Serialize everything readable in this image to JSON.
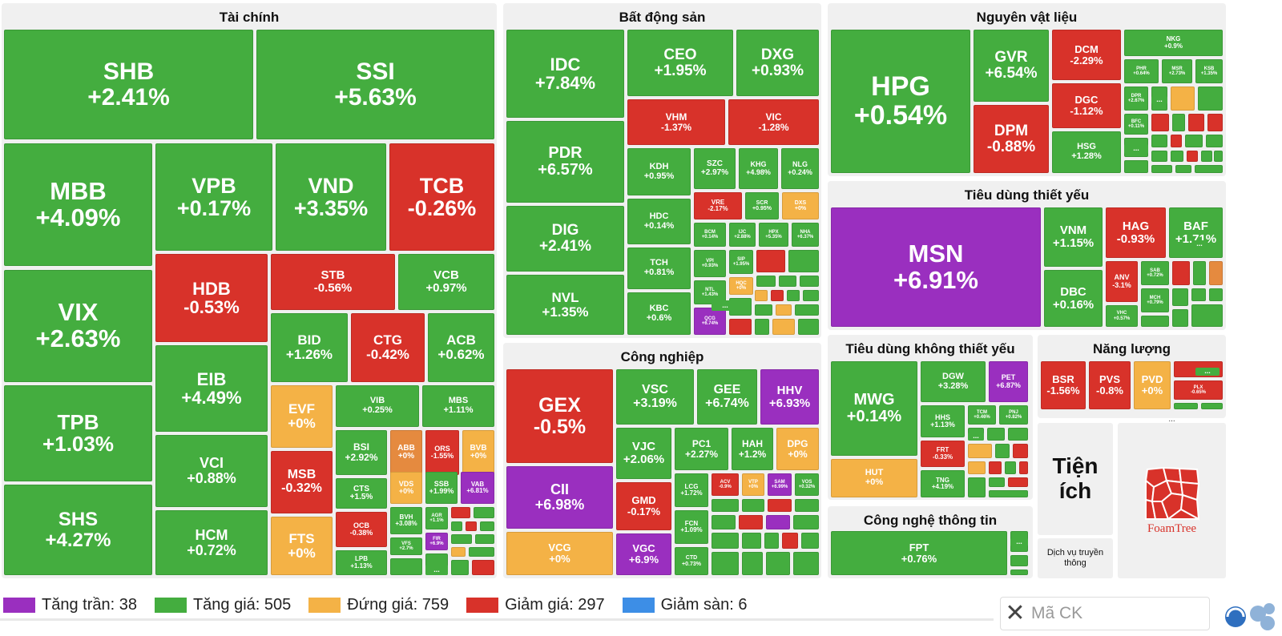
{
  "sectors": [
    {
      "name": "Tài chính"
    },
    {
      "name": "Bất động sản"
    },
    {
      "name": "Nguyên vật liệu"
    },
    {
      "name": "Tiêu dùng thiết yếu"
    },
    {
      "name": "Công nghiệp"
    },
    {
      "name": "Tiêu dùng không thiết yếu"
    },
    {
      "name": "Năng lượng"
    },
    {
      "name": "Công nghệ thông tin"
    }
  ],
  "tiles": [
    {
      "s": "SHB",
      "c": "+2.41%",
      "k": "up"
    },
    {
      "s": "SSI",
      "c": "+5.63%",
      "k": "up"
    },
    {
      "s": "MBB",
      "c": "+4.09%",
      "k": "up"
    },
    {
      "s": "VPB",
      "c": "+0.17%",
      "k": "up"
    },
    {
      "s": "VND",
      "c": "+3.35%",
      "k": "up"
    },
    {
      "s": "TCB",
      "c": "-0.26%",
      "k": "down"
    },
    {
      "s": "VIX",
      "c": "+2.63%",
      "k": "up"
    },
    {
      "s": "HDB",
      "c": "-0.53%",
      "k": "down"
    },
    {
      "s": "STB",
      "c": "-0.56%",
      "k": "down"
    },
    {
      "s": "VCB",
      "c": "+0.97%",
      "k": "up"
    },
    {
      "s": "EIB",
      "c": "+4.49%",
      "k": "up"
    },
    {
      "s": "BID",
      "c": "+1.26%",
      "k": "up"
    },
    {
      "s": "CTG",
      "c": "-0.42%",
      "k": "down"
    },
    {
      "s": "ACB",
      "c": "+0.62%",
      "k": "up"
    },
    {
      "s": "TPB",
      "c": "+1.03%",
      "k": "up"
    },
    {
      "s": "VCI",
      "c": "+0.88%",
      "k": "up"
    },
    {
      "s": "EVF",
      "c": "+0%",
      "k": "ref"
    },
    {
      "s": "VIB",
      "c": "+0.25%",
      "k": "up"
    },
    {
      "s": "MBS",
      "c": "+1.11%",
      "k": "up"
    },
    {
      "s": "BSI",
      "c": "+2.92%",
      "k": "up"
    },
    {
      "s": "ABB",
      "c": "+0%",
      "k": "mix"
    },
    {
      "s": "ORS",
      "c": "-1.55%",
      "k": "down"
    },
    {
      "s": "BVB",
      "c": "+0%",
      "k": "ref"
    },
    {
      "s": "MSB",
      "c": "-0.32%",
      "k": "down"
    },
    {
      "s": "CTS",
      "c": "+1.5%",
      "k": "up"
    },
    {
      "s": "VDS",
      "c": "+0%",
      "k": "ref"
    },
    {
      "s": "SSB",
      "c": "+1.99%",
      "k": "up"
    },
    {
      "s": "VAB",
      "c": "+6.81%",
      "k": "ceil"
    },
    {
      "s": "SHS",
      "c": "+4.27%",
      "k": "up"
    },
    {
      "s": "HCM",
      "c": "+0.72%",
      "k": "up"
    },
    {
      "s": "FTS",
      "c": "+0%",
      "k": "ref"
    },
    {
      "s": "OCB",
      "c": "-0.38%",
      "k": "down"
    },
    {
      "s": "BVH",
      "c": "+3.08%",
      "k": "up"
    },
    {
      "s": "AGR",
      "c": "+1.1%",
      "k": "up"
    },
    {
      "s": "LPB",
      "c": "+1.13%",
      "k": "up"
    },
    {
      "s": "VFS",
      "c": "+2.7%",
      "k": "up"
    },
    {
      "s": "FIR",
      "c": "+6.9%",
      "k": "ceil"
    },
    {
      "s": "IDC",
      "c": "+7.84%",
      "k": "up"
    },
    {
      "s": "CEO",
      "c": "+1.95%",
      "k": "up"
    },
    {
      "s": "DXG",
      "c": "+0.93%",
      "k": "up"
    },
    {
      "s": "VHM",
      "c": "-1.37%",
      "k": "down"
    },
    {
      "s": "VIC",
      "c": "-1.28%",
      "k": "down"
    },
    {
      "s": "PDR",
      "c": "+6.57%",
      "k": "up"
    },
    {
      "s": "KDH",
      "c": "+0.95%",
      "k": "up"
    },
    {
      "s": "SZC",
      "c": "+2.97%",
      "k": "up"
    },
    {
      "s": "KHG",
      "c": "+4.98%",
      "k": "up"
    },
    {
      "s": "NLG",
      "c": "+0.24%",
      "k": "up"
    },
    {
      "s": "HDC",
      "c": "+0.14%",
      "k": "up"
    },
    {
      "s": "VRE",
      "c": "-2.17%",
      "k": "down"
    },
    {
      "s": "SCR",
      "c": "+0.95%",
      "k": "up"
    },
    {
      "s": "DXS",
      "c": "+0%",
      "k": "ref"
    },
    {
      "s": "DIG",
      "c": "+2.41%",
      "k": "up"
    },
    {
      "s": "BCM",
      "c": "+0.14%",
      "k": "up"
    },
    {
      "s": "IJC",
      "c": "+2.88%",
      "k": "up"
    },
    {
      "s": "HPX",
      "c": "+5.35%",
      "k": "up"
    },
    {
      "s": "NHA",
      "c": "+6.37%",
      "k": "up"
    },
    {
      "s": "TCH",
      "c": "+0.81%",
      "k": "up"
    },
    {
      "s": "VPI",
      "c": "+0.93%",
      "k": "up"
    },
    {
      "s": "SIP",
      "c": "+1.95%",
      "k": "up"
    },
    {
      "s": "HQC",
      "c": "+0%",
      "k": "ref"
    },
    {
      "s": "NVL",
      "c": "+1.35%",
      "k": "up"
    },
    {
      "s": "NTL",
      "c": "+1.43%",
      "k": "up"
    },
    {
      "s": "KBC",
      "c": "+0.6%",
      "k": "up"
    },
    {
      "s": "QCG",
      "c": "+6.74%",
      "k": "ceil"
    },
    {
      "s": "HPG",
      "c": "+0.54%",
      "k": "up"
    },
    {
      "s": "GVR",
      "c": "+6.54%",
      "k": "up"
    },
    {
      "s": "DCM",
      "c": "-2.29%",
      "k": "down"
    },
    {
      "s": "NKG",
      "c": "+0.9%",
      "k": "up"
    },
    {
      "s": "PHR",
      "c": "+0.64%",
      "k": "up"
    },
    {
      "s": "MSR",
      "c": "+2.73%",
      "k": "up"
    },
    {
      "s": "KSB",
      "c": "+1.35%",
      "k": "up"
    },
    {
      "s": "DGC",
      "c": "-1.12%",
      "k": "down"
    },
    {
      "s": "DPR",
      "c": "+2.67%",
      "k": "up"
    },
    {
      "s": "BFC",
      "c": "+0.11%",
      "k": "up"
    },
    {
      "s": "DPM",
      "c": "-0.88%",
      "k": "down"
    },
    {
      "s": "HSG",
      "c": "+1.28%",
      "k": "up"
    },
    {
      "s": "MSN",
      "c": "+6.91%",
      "k": "ceil"
    },
    {
      "s": "VNM",
      "c": "+1.15%",
      "k": "up"
    },
    {
      "s": "HAG",
      "c": "-0.93%",
      "k": "down"
    },
    {
      "s": "BAF",
      "c": "+1.71%",
      "k": "up"
    },
    {
      "s": "DBC",
      "c": "+0.16%",
      "k": "up"
    },
    {
      "s": "ANV",
      "c": "-3.1%",
      "k": "down"
    },
    {
      "s": "SAB",
      "c": "+0.72%",
      "k": "up"
    },
    {
      "s": "MCH",
      "c": "+0.79%",
      "k": "up"
    },
    {
      "s": "VHC",
      "c": "+0.57%",
      "k": "up"
    },
    {
      "s": "GEX",
      "c": "-0.5%",
      "k": "down"
    },
    {
      "s": "VSC",
      "c": "+3.19%",
      "k": "up"
    },
    {
      "s": "GEE",
      "c": "+6.74%",
      "k": "up"
    },
    {
      "s": "HHV",
      "c": "+6.93%",
      "k": "ceil"
    },
    {
      "s": "VJC",
      "c": "+2.06%",
      "k": "up"
    },
    {
      "s": "PC1",
      "c": "+2.27%",
      "k": "up"
    },
    {
      "s": "HAH",
      "c": "+1.2%",
      "k": "up"
    },
    {
      "s": "DPG",
      "c": "+0%",
      "k": "ref"
    },
    {
      "s": "CII",
      "c": "+6.98%",
      "k": "ceil"
    },
    {
      "s": "GMD",
      "c": "-0.17%",
      "k": "down"
    },
    {
      "s": "LCG",
      "c": "+1.72%",
      "k": "up"
    },
    {
      "s": "ACV",
      "c": "-0.9%",
      "k": "down"
    },
    {
      "s": "VTP",
      "c": "+0%",
      "k": "ref"
    },
    {
      "s": "SAM",
      "c": "+6.99%",
      "k": "ceil"
    },
    {
      "s": "VOS",
      "c": "+0.32%",
      "k": "up"
    },
    {
      "s": "FCN",
      "c": "+1.09%",
      "k": "up"
    },
    {
      "s": "VCG",
      "c": "+0%",
      "k": "ref"
    },
    {
      "s": "VGC",
      "c": "+6.9%",
      "k": "ceil"
    },
    {
      "s": "CTD",
      "c": "+0.73%",
      "k": "up"
    },
    {
      "s": "MWG",
      "c": "+0.14%",
      "k": "up"
    },
    {
      "s": "DGW",
      "c": "+3.28%",
      "k": "up"
    },
    {
      "s": "PET",
      "c": "+6.87%",
      "k": "ceil"
    },
    {
      "s": "HHS",
      "c": "+1.13%",
      "k": "up"
    },
    {
      "s": "TCM",
      "c": "+0.46%",
      "k": "up"
    },
    {
      "s": "PNJ",
      "c": "+0.82%",
      "k": "up"
    },
    {
      "s": "FRT",
      "c": "-0.33%",
      "k": "down"
    },
    {
      "s": "HUT",
      "c": "+0%",
      "k": "ref"
    },
    {
      "s": "TNG",
      "c": "+4.19%",
      "k": "up"
    },
    {
      "s": "BSR",
      "c": "-1.56%",
      "k": "down"
    },
    {
      "s": "PVS",
      "c": "-0.8%",
      "k": "down"
    },
    {
      "s": "PVD",
      "c": "+0%",
      "k": "ref"
    },
    {
      "s": "PLX",
      "c": "-0.65%",
      "k": "down"
    },
    {
      "s": "FPT",
      "c": "+0.76%",
      "k": "up"
    }
  ],
  "small": {
    "dots": "..."
  },
  "extra": {
    "utilities_label": "Tiện\ních",
    "media_label": "Dịch vụ truyền thông",
    "foamtree_label": "FoamTree"
  },
  "legend": [
    {
      "label": "Tăng trần: 38",
      "color": "#9a2fbf"
    },
    {
      "label": "Tăng giá: 505",
      "color": "#44ad3f"
    },
    {
      "label": "Đứng giá: 759",
      "color": "#f4b246"
    },
    {
      "label": "Giảm giá: 297",
      "color": "#d8322a"
    },
    {
      "label": "Giảm sàn: 6",
      "color": "#3d8ee6"
    }
  ],
  "search": {
    "placeholder": "Mã CK",
    "clear_icon": "close-icon"
  },
  "logo": {
    "icon": "app-logo-icon"
  }
}
